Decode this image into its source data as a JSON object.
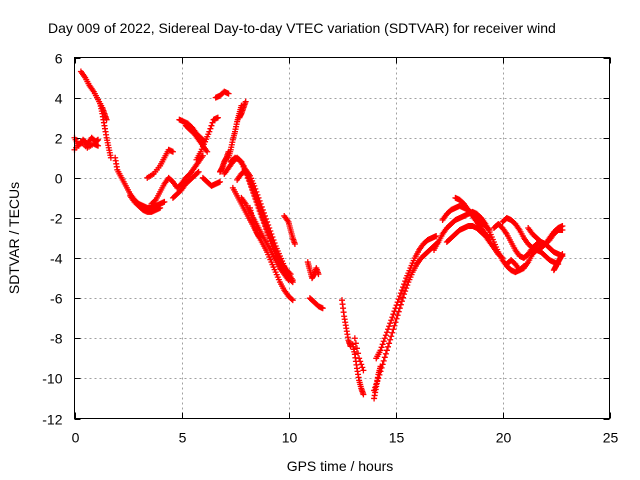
{
  "chart_data": {
    "type": "scatter",
    "title": "Day 009 of 2022, Sidereal Day-to-day VTEC variation (SDTVAR) for receiver wind",
    "xlabel": "GPS time / hours",
    "ylabel": "SDTVAR / TECUs",
    "xlim": [
      0,
      25
    ],
    "ylim": [
      -12,
      6
    ],
    "xticks": [
      0,
      5,
      10,
      15,
      20,
      25
    ],
    "yticks": [
      -12,
      -10,
      -8,
      -6,
      -4,
      -2,
      0,
      2,
      4,
      6
    ],
    "xtick_labels": [
      "0",
      "5",
      "10",
      "15",
      "20",
      "25"
    ],
    "ytick_labels": [
      "-12",
      "-10",
      "-8",
      "-6",
      "-4",
      "-2",
      "0",
      "2",
      "4",
      "6"
    ],
    "grid": true,
    "marker": "+",
    "series": [
      {
        "name": "SDTVAR",
        "color": "#ff0000",
        "segments": [
          {
            "x": [
              0.0,
              0.2,
              0.4,
              0.6,
              0.8,
              1.0,
              1.1
            ],
            "y": [
              2.0,
              1.6,
              1.9,
              1.7,
              2.0,
              1.8,
              1.9
            ]
          },
          {
            "x": [
              0.0,
              0.3,
              0.6,
              0.9,
              1.1
            ],
            "y": [
              1.4,
              1.8,
              1.5,
              1.7,
              1.6
            ]
          },
          {
            "x": [
              0.3,
              0.5,
              0.7,
              0.9,
              1.1,
              1.3,
              1.4,
              1.5
            ],
            "y": [
              5.3,
              5.0,
              4.6,
              4.3,
              3.9,
              3.5,
              3.2,
              2.9
            ]
          },
          {
            "x": [
              1.2,
              1.3,
              1.4,
              1.5,
              1.6,
              1.7
            ],
            "y": [
              3.7,
              3.2,
              2.6,
              2.0,
              1.5,
              1.0
            ]
          },
          {
            "x": [
              1.9,
              2.0,
              2.2,
              2.4,
              2.6,
              2.8,
              3.0,
              3.2,
              3.4,
              3.6,
              3.8,
              4.0,
              4.2
            ],
            "y": [
              1.0,
              0.4,
              0.0,
              -0.4,
              -0.8,
              -1.1,
              -1.3,
              -1.4,
              -1.5,
              -1.5,
              -1.4,
              -1.3,
              -1.2
            ]
          },
          {
            "x": [
              2.6,
              2.8,
              3.0,
              3.2,
              3.4,
              3.6,
              3.8,
              4.0
            ],
            "y": [
              -0.9,
              -1.2,
              -1.4,
              -1.6,
              -1.7,
              -1.7,
              -1.6,
              -1.5
            ]
          },
          {
            "x": [
              3.4,
              3.7,
              4.0,
              4.2,
              4.4,
              4.6
            ],
            "y": [
              0.0,
              0.2,
              0.6,
              1.0,
              1.4,
              1.3
            ]
          },
          {
            "x": [
              3.6,
              3.8,
              4.0,
              4.2,
              4.4,
              4.6,
              4.8,
              5.0,
              5.2,
              5.4,
              5.6,
              5.8,
              6.0
            ],
            "y": [
              -1.3,
              -1.1,
              -0.7,
              -0.3,
              0.0,
              -0.2,
              -0.5,
              -0.3,
              0.0,
              0.2,
              0.5,
              0.8,
              1.1
            ]
          },
          {
            "x": [
              4.6,
              4.8,
              5.0,
              5.2,
              5.4,
              5.6,
              5.8
            ],
            "y": [
              -1.0,
              -0.8,
              -0.6,
              -0.3,
              -0.1,
              0.1,
              0.3
            ]
          },
          {
            "x": [
              4.9,
              5.1,
              5.3,
              5.5,
              5.7,
              5.9,
              6.1
            ],
            "y": [
              2.9,
              2.8,
              2.7,
              2.5,
              2.2,
              2.0,
              1.8
            ]
          },
          {
            "x": [
              5.2,
              5.4,
              5.6,
              5.8,
              6.0,
              6.2
            ],
            "y": [
              2.6,
              2.4,
              2.2,
              1.9,
              1.6,
              1.3
            ]
          },
          {
            "x": [
              5.7,
              5.9,
              6.1,
              6.3,
              6.5,
              6.7
            ],
            "y": [
              0.9,
              1.3,
              1.8,
              2.3,
              2.9,
              3.0
            ]
          },
          {
            "x": [
              6.0,
              6.2,
              6.4,
              6.6,
              6.8
            ],
            "y": [
              0.0,
              -0.2,
              -0.4,
              -0.3,
              -0.2
            ]
          },
          {
            "x": [
              6.6,
              6.8,
              7.0,
              7.2
            ],
            "y": [
              4.0,
              4.1,
              4.3,
              4.2
            ]
          },
          {
            "x": [
              6.8,
              6.9,
              7.0,
              7.1,
              7.2
            ],
            "y": [
              0.3,
              0.5,
              0.8,
              1.0,
              1.3
            ]
          },
          {
            "x": [
              7.2,
              7.3,
              7.4,
              7.5,
              7.6,
              7.7,
              7.8
            ],
            "y": [
              1.0,
              1.4,
              1.9,
              2.3,
              2.8,
              3.2,
              3.6
            ]
          },
          {
            "x": [
              7.7,
              7.8,
              7.9,
              8.0
            ],
            "y": [
              3.0,
              3.2,
              3.5,
              3.8
            ]
          },
          {
            "x": [
              7.0,
              7.2,
              7.4,
              7.6,
              7.8,
              8.0,
              8.2,
              8.4,
              8.6,
              8.8,
              9.0,
              9.2,
              9.4,
              9.6,
              9.8,
              10.0,
              10.2
            ],
            "y": [
              0.2,
              0.5,
              0.8,
              1.0,
              0.8,
              0.3,
              -0.3,
              -0.9,
              -1.5,
              -2.1,
              -2.7,
              -3.3,
              -3.8,
              -4.3,
              -4.7,
              -5.0,
              -5.2
            ]
          },
          {
            "x": [
              7.3,
              7.5,
              7.7,
              7.9,
              8.1,
              8.3,
              8.5,
              8.7,
              8.9,
              9.1,
              9.3,
              9.5,
              9.7,
              9.9,
              10.1
            ],
            "y": [
              0.8,
              1.0,
              0.9,
              0.6,
              0.1,
              -0.5,
              -1.1,
              -1.7,
              -2.3,
              -2.9,
              -3.4,
              -3.9,
              -4.3,
              -4.6,
              -4.8
            ]
          },
          {
            "x": [
              7.6,
              7.8,
              8.0,
              8.2,
              8.4,
              8.6,
              8.8,
              9.0,
              9.2,
              9.4,
              9.6,
              9.8,
              10.0,
              10.2
            ],
            "y": [
              -0.1,
              0.2,
              0.4,
              0.1,
              -0.4,
              -1.0,
              -1.6,
              -2.2,
              -2.8,
              -3.4,
              -3.9,
              -4.4,
              -4.8,
              -5.1
            ]
          },
          {
            "x": [
              7.4,
              7.6,
              7.8,
              8.0,
              8.2,
              8.4,
              8.6,
              8.8,
              9.0,
              9.2,
              9.4,
              9.6,
              9.8,
              10.0,
              10.2
            ],
            "y": [
              -0.5,
              -0.9,
              -1.3,
              -1.7,
              -2.1,
              -2.5,
              -2.9,
              -3.3,
              -3.7,
              -4.2,
              -4.7,
              -5.2,
              -5.6,
              -5.9,
              -6.1
            ]
          },
          {
            "x": [
              7.8,
              8.0,
              8.2,
              8.4,
              8.6,
              8.8,
              9.0,
              9.2,
              9.4,
              9.6,
              9.8,
              10.0
            ],
            "y": [
              -1.0,
              -1.3,
              -1.7,
              -2.1,
              -2.5,
              -2.9,
              -3.3,
              -3.7,
              -4.1,
              -4.5,
              -4.8,
              -5.1
            ]
          },
          {
            "x": [
              8.2,
              8.3,
              8.4,
              8.5,
              8.6,
              8.7
            ],
            "y": [
              -1.5,
              -2.0,
              -2.4,
              -2.7,
              -2.9,
              -3.0
            ]
          },
          {
            "x": [
              9.8,
              10.0,
              10.1,
              10.2,
              10.3
            ],
            "y": [
              -1.9,
              -2.2,
              -2.6,
              -3.0,
              -3.3
            ]
          },
          {
            "x": [
              10.9,
              11.0,
              11.1,
              11.2,
              11.3,
              11.4
            ],
            "y": [
              -4.2,
              -4.6,
              -5.0,
              -4.8,
              -4.5,
              -4.8
            ]
          },
          {
            "x": [
              11.0,
              11.2,
              11.4,
              11.6
            ],
            "y": [
              -6.0,
              -6.2,
              -6.4,
              -6.5
            ]
          },
          {
            "x": [
              12.5,
              12.6,
              12.7,
              12.8,
              12.9
            ],
            "y": [
              -6.1,
              -6.9,
              -7.5,
              -8.1,
              -8.4
            ]
          },
          {
            "x": [
              13.0,
              13.1,
              13.2,
              13.3,
              13.4,
              13.5
            ],
            "y": [
              -8.3,
              -8.8,
              -9.5,
              -10.1,
              -10.5,
              -10.8
            ]
          },
          {
            "x": [
              13.1,
              13.3,
              13.5
            ],
            "y": [
              -8.0,
              -9.0,
              -9.6
            ]
          },
          {
            "x": [
              14.0,
              14.2,
              14.4,
              14.6,
              14.8,
              15.0,
              15.2,
              15.4,
              15.6,
              15.8,
              16.0,
              16.2,
              16.4,
              16.6,
              16.8,
              17.0
            ],
            "y": [
              -10.6,
              -10.0,
              -9.3,
              -8.6,
              -7.9,
              -7.2,
              -6.5,
              -5.8,
              -5.2,
              -4.7,
              -4.3,
              -4.0,
              -3.8,
              -3.6,
              -3.4,
              -3.2
            ]
          },
          {
            "x": [
              14.1,
              14.3,
              14.5,
              14.7,
              14.9,
              15.1,
              15.3,
              15.5,
              15.7,
              15.9,
              16.1,
              16.3,
              16.5,
              16.7,
              16.9
            ],
            "y": [
              -9.0,
              -8.6,
              -8.0,
              -7.4,
              -6.8,
              -6.2,
              -5.6,
              -5.0,
              -4.5,
              -4.0,
              -3.6,
              -3.3,
              -3.1,
              -3.0,
              -2.9
            ]
          },
          {
            "x": [
              14.0,
              14.1,
              14.2,
              14.3
            ],
            "y": [
              -11.0,
              -10.4,
              -9.8,
              -9.4
            ]
          },
          {
            "x": [
              16.8,
              17.0,
              17.2,
              17.4,
              17.6,
              17.8,
              18.0,
              18.2,
              18.4,
              18.6,
              18.8,
              19.0,
              19.2,
              19.4,
              19.6,
              19.8,
              20.0,
              20.2,
              20.4,
              20.6,
              20.8,
              21.0
            ],
            "y": [
              -3.6,
              -3.2,
              -2.8,
              -2.5,
              -2.3,
              -2.1,
              -2.0,
              -1.9,
              -1.8,
              -1.7,
              -1.8,
              -2.0,
              -2.3,
              -2.7,
              -3.2,
              -3.7,
              -4.1,
              -4.4,
              -4.6,
              -4.7,
              -4.6,
              -4.4
            ]
          },
          {
            "x": [
              17.2,
              17.4,
              17.6,
              17.8,
              18.0,
              18.2,
              18.4,
              18.6,
              18.8,
              19.0,
              19.2,
              19.4
            ],
            "y": [
              -2.1,
              -1.8,
              -1.6,
              -1.5,
              -1.4,
              -1.5,
              -1.6,
              -1.8,
              -2.0,
              -2.2,
              -2.4,
              -2.6
            ]
          },
          {
            "x": [
              17.4,
              17.6,
              17.8,
              18.0,
              18.2,
              18.4,
              18.6,
              18.8,
              19.0,
              19.2,
              19.4,
              19.6,
              19.8,
              20.0
            ],
            "y": [
              -3.2,
              -3.0,
              -2.8,
              -2.6,
              -2.5,
              -2.4,
              -2.4,
              -2.5,
              -2.7,
              -2.9,
              -3.2,
              -3.5,
              -3.8,
              -4.0
            ]
          },
          {
            "x": [
              17.8,
              18.0,
              18.2,
              18.4,
              18.6,
              18.8,
              19.0,
              19.2,
              19.4
            ],
            "y": [
              -1.0,
              -1.1,
              -1.3,
              -1.6,
              -1.9,
              -2.2,
              -2.5,
              -2.8,
              -3.0
            ]
          },
          {
            "x": [
              19.6,
              19.8,
              20.0,
              20.2,
              20.4,
              20.6,
              20.8,
              21.0,
              21.2,
              21.4,
              21.6,
              21.8,
              22.0,
              22.2,
              22.4,
              22.6,
              22.8
            ],
            "y": [
              -2.5,
              -2.3,
              -2.5,
              -2.8,
              -3.2,
              -3.6,
              -3.9,
              -4.0,
              -3.8,
              -3.5,
              -3.3,
              -3.2,
              -3.3,
              -3.5,
              -3.7,
              -3.8,
              -3.9
            ]
          },
          {
            "x": [
              20.0,
              20.2,
              20.4,
              20.6,
              20.8,
              21.0,
              21.2,
              21.4,
              21.6,
              21.8,
              22.0,
              22.2,
              22.4,
              22.6,
              22.8
            ],
            "y": [
              -2.2,
              -2.0,
              -2.1,
              -2.3,
              -2.6,
              -3.0,
              -3.3,
              -3.5,
              -3.6,
              -3.5,
              -3.3,
              -3.0,
              -2.7,
              -2.5,
              -2.4
            ]
          },
          {
            "x": [
              20.2,
              20.4,
              20.6,
              20.8,
              21.0,
              21.2,
              21.4,
              21.6,
              21.8,
              22.0,
              22.2,
              22.4,
              22.6
            ],
            "y": [
              -4.3,
              -4.1,
              -4.3,
              -4.6,
              -4.5,
              -4.2,
              -3.8,
              -3.6,
              -3.7,
              -3.9,
              -4.1,
              -4.2,
              -4.3
            ]
          },
          {
            "x": [
              21.2,
              21.4,
              21.6,
              21.8,
              22.0,
              22.2,
              22.4,
              22.6,
              22.8
            ],
            "y": [
              -2.5,
              -2.8,
              -3.0,
              -3.2,
              -3.3,
              -3.1,
              -2.8,
              -2.6,
              -2.6
            ]
          },
          {
            "x": [
              22.4,
              22.5,
              22.6,
              22.7,
              22.8
            ],
            "y": [
              -4.6,
              -4.4,
              -4.2,
              -4.0,
              -3.8
            ]
          }
        ]
      }
    ]
  }
}
